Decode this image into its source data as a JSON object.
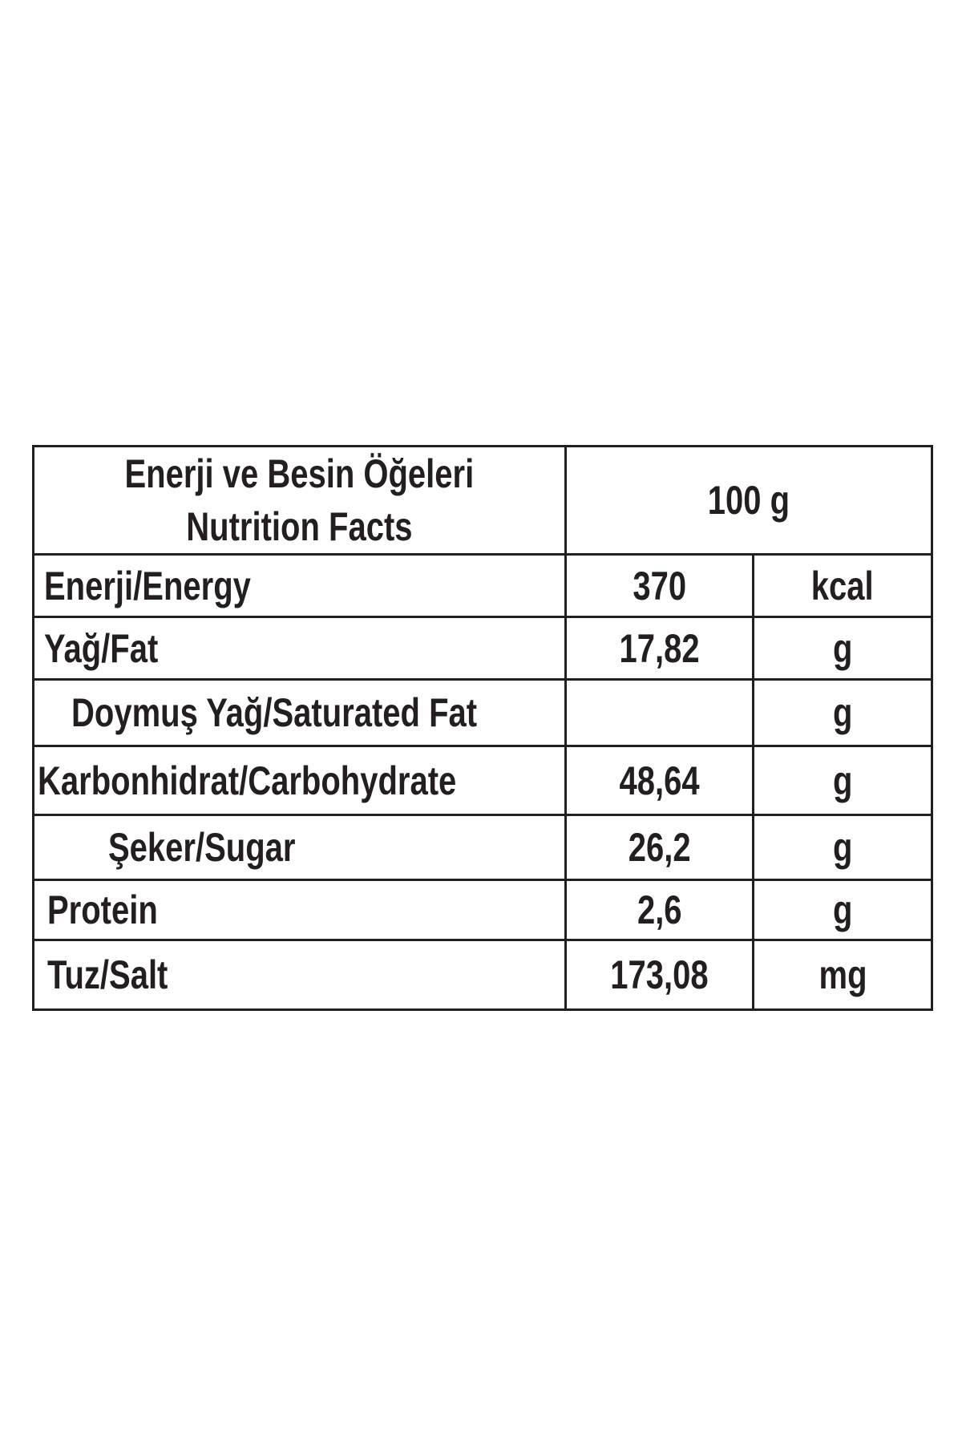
{
  "header": {
    "title": [
      "Enerji ve Besin Öğeleri",
      "Nutrition Facts"
    ],
    "amount": "100 g"
  },
  "rows": [
    {
      "label": "Enerji/Energy",
      "value": "370",
      "unit": "kcal"
    },
    {
      "label": "Yağ/Fat",
      "value": "17,82",
      "unit": "g"
    },
    {
      "label": "Doymuş Yağ/Saturated Fat",
      "unit": "g"
    },
    {
      "label": "Karbonhidrat/Carbohydrate",
      "value": "48,64",
      "unit": "g"
    },
    {
      "label": "Şeker/Sugar",
      "value": "26,2",
      "unit": "g"
    },
    {
      "label": "Protein",
      "value": "2,6",
      "unit": "g"
    },
    {
      "label": "Tuz/Salt",
      "value": "173,08",
      "unit": "mg"
    }
  ]
}
